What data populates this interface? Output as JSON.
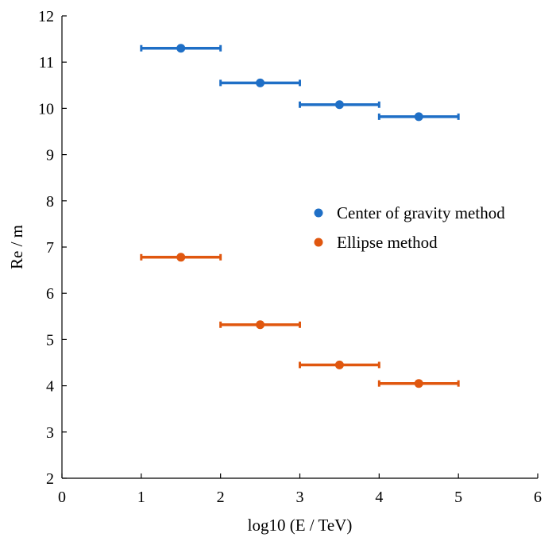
{
  "chart_data": {
    "type": "scatter",
    "title": "",
    "xlabel": "log10 (E / TeV)",
    "ylabel": "Re / m",
    "xlim": [
      0,
      6
    ],
    "ylim": [
      2,
      12
    ],
    "xticks": [
      "0",
      "1",
      "2",
      "3",
      "4",
      "5",
      "6"
    ],
    "yticks": [
      "2",
      "3",
      "4",
      "5",
      "6",
      "7",
      "8",
      "9",
      "10",
      "11",
      "12"
    ],
    "grid": false,
    "legend_position": "right",
    "series": [
      {
        "name": "Center of gravity method",
        "color": "#1f6fc6",
        "x": [
          1.5,
          2.5,
          3.5,
          4.5
        ],
        "y": [
          11.3,
          10.55,
          10.08,
          9.82
        ],
        "x_error": [
          0.5,
          0.5,
          0.5,
          0.5
        ]
      },
      {
        "name": "Ellipse method",
        "color": "#e0570f",
        "x": [
          1.5,
          2.5,
          3.5,
          4.5
        ],
        "y": [
          6.78,
          5.32,
          4.45,
          4.05
        ],
        "x_error": [
          0.5,
          0.5,
          0.5,
          0.5
        ]
      }
    ]
  }
}
